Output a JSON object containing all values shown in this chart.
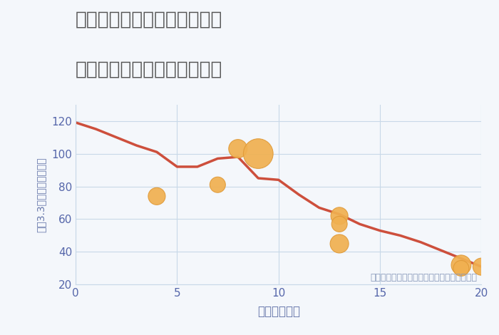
{
  "title_line1": "奈良県生駒郡斑鳩町龍田西の",
  "title_line2": "駅距離別中古マンション価格",
  "xlabel": "駅距離（分）",
  "ylabel": "坪（3.3㎡）単価（万円）",
  "annotation": "円の大きさは、取引のあった物件面積を示す",
  "line_x": [
    0,
    1,
    2,
    3,
    4,
    5,
    6,
    7,
    8,
    9,
    10,
    11,
    12,
    13,
    14,
    15,
    16,
    17,
    18,
    19,
    20
  ],
  "line_y": [
    119,
    115,
    110,
    105,
    101,
    92,
    92,
    97,
    98,
    85,
    84,
    75,
    67,
    63,
    57,
    53,
    50,
    46,
    41,
    36,
    31
  ],
  "line_color": "#cd4f3c",
  "scatter_x": [
    4,
    7,
    8,
    9,
    13,
    13,
    13,
    19,
    19,
    20
  ],
  "scatter_y": [
    74,
    81,
    103,
    100,
    62,
    57,
    45,
    32,
    30,
    31
  ],
  "scatter_sizes": [
    300,
    250,
    350,
    900,
    300,
    250,
    350,
    400,
    250,
    300
  ],
  "scatter_color": "#f0b050",
  "scatter_edgecolor": "#e09a38",
  "xlim": [
    0,
    20
  ],
  "ylim": [
    20,
    130
  ],
  "xticks": [
    0,
    5,
    10,
    15,
    20
  ],
  "yticks": [
    20,
    40,
    60,
    80,
    100,
    120
  ],
  "title_color": "#555555",
  "label_color": "#6677aa",
  "tick_color": "#5566aa",
  "grid_color": "#c8d8e8",
  "background_color": "#f4f7fb",
  "title_fontsize": 19,
  "label_fontsize": 12,
  "annotation_fontsize": 9,
  "annotation_color": "#8899bb"
}
